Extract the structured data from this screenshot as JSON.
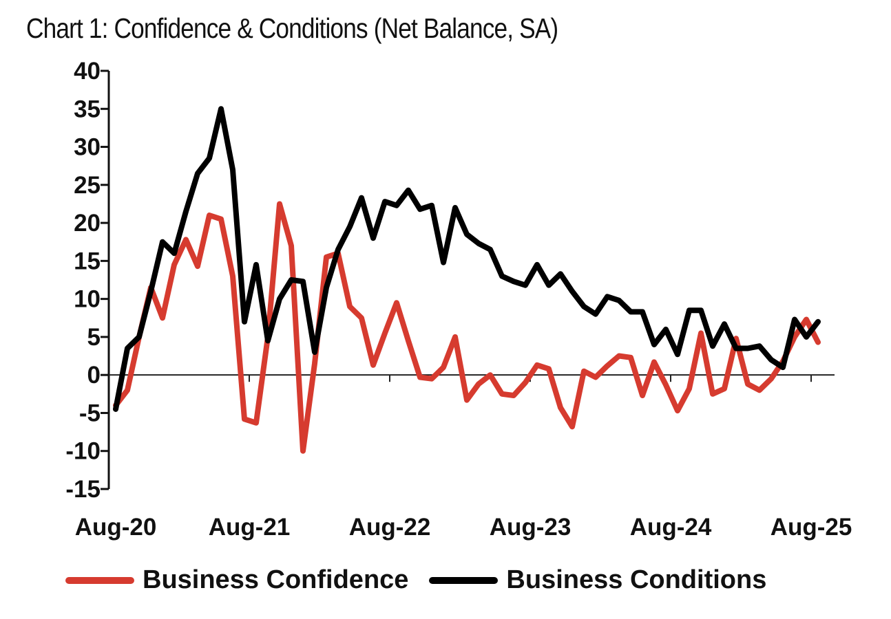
{
  "chart_data": {
    "type": "line",
    "title": "Chart 1: Confidence & Conditions (Net Balance, SA)",
    "xlabel": "",
    "ylabel": "",
    "ylim": [
      -15,
      40
    ],
    "yticks": [
      40,
      35,
      30,
      25,
      20,
      15,
      10,
      5,
      0,
      -5,
      -10,
      -15
    ],
    "xtick_labels": [
      "Aug-20",
      "Aug-21",
      "Aug-22",
      "Aug-23",
      "Aug-24",
      "Aug-25"
    ],
    "xtick_indices": [
      0,
      12,
      24,
      36,
      48,
      60
    ],
    "x_start": "Aug-20",
    "x_end": "Aug-25",
    "frequency": "monthly",
    "grid": false,
    "legend_position": "bottom",
    "series": [
      {
        "name": "Business Confidence",
        "color": "#d63b2f",
        "values": [
          -4,
          -2,
          5,
          11.5,
          7.5,
          14.5,
          17.8,
          14.3,
          21,
          20.5,
          13,
          -5.8,
          -6.3,
          5,
          22.5,
          17,
          -10,
          1.5,
          15.5,
          16,
          9,
          7.5,
          1.3,
          5.5,
          9.5,
          4.5,
          -0.3,
          -0.5,
          1,
          5,
          -3.3,
          -1.2,
          0,
          -2.5,
          -2.7,
          -1,
          1.3,
          0.8,
          -4.3,
          -6.8,
          0.5,
          -0.3,
          1.2,
          2.5,
          2.3,
          -2.7,
          1.7,
          -1.3,
          -4.7,
          -1.8,
          5.5,
          -2.5,
          -1.8,
          4.8,
          -1.2,
          -2,
          -0.5,
          1.8,
          5,
          7.3,
          4.3
        ]
      },
      {
        "name": "Business Conditions",
        "color": "#000000",
        "values": [
          -4.5,
          3.5,
          5,
          11,
          17.5,
          16,
          21.5,
          26.5,
          28.5,
          35,
          27,
          7,
          14.5,
          4.5,
          10,
          12.5,
          12.3,
          3,
          11.5,
          16.5,
          19.5,
          23.3,
          18,
          22.8,
          22.3,
          24.3,
          21.8,
          22.3,
          14.8,
          22,
          18.5,
          17.3,
          16.5,
          13,
          12.3,
          11.8,
          14.5,
          11.8,
          13.3,
          11,
          9,
          8,
          10.3,
          9.8,
          8.3,
          8.3,
          4,
          6,
          2.7,
          8.5,
          8.5,
          3.8,
          6.7,
          3.5,
          3.5,
          3.8,
          2,
          1,
          7.3,
          5,
          7
        ]
      }
    ]
  }
}
